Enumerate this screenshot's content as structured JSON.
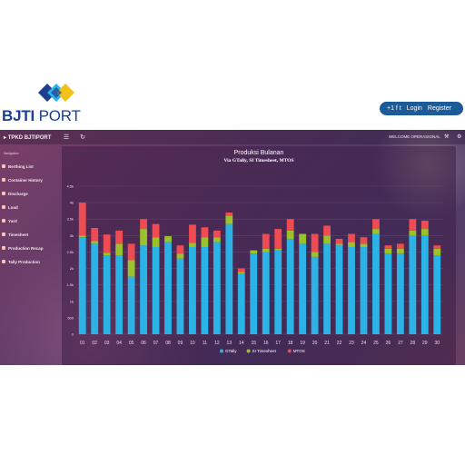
{
  "site": {
    "logo_text_bold": "BJTI",
    "logo_text_light": " PORT",
    "social": "+1 f t",
    "login_label": "Login",
    "register_label": "Register"
  },
  "header": {
    "brand": "TPKD BJTIPORT",
    "menu_icon": "menu-icon",
    "refresh_icon": "refresh-icon",
    "welcome": "WELCOME OPERASIONAL",
    "tools_icon": "tools-icon",
    "settings_icon": "gear-icon"
  },
  "sidebar": {
    "title": "Navigation",
    "items": [
      {
        "label": "Berthing List"
      },
      {
        "label": "Container History"
      },
      {
        "label": "Discharge"
      },
      {
        "label": "Load"
      },
      {
        "label": "Yard"
      },
      {
        "label": "Timesheet"
      },
      {
        "label": "Production Recap"
      },
      {
        "label": "Tally Production"
      }
    ]
  },
  "colors": {
    "gtally": "#2bb3e8",
    "si_timesheet": "#9bc22a",
    "mtos": "#ee4b52"
  },
  "chart_data": {
    "type": "bar",
    "stacked": true,
    "title": "Produksi Bulanan",
    "subtitle": "Via GTally, SI Timesheet, MTOS",
    "categories": [
      "01",
      "02",
      "03",
      "04",
      "05",
      "06",
      "07",
      "08",
      "09",
      "10",
      "11",
      "12",
      "13",
      "14",
      "15",
      "16",
      "17",
      "18",
      "19",
      "20",
      "21",
      "22",
      "23",
      "24",
      "25",
      "26",
      "27",
      "28",
      "29",
      "30"
    ],
    "yticks": [
      "0",
      "500",
      "1k",
      "1.5k",
      "2k",
      "2.5k",
      "3k",
      "3.5k",
      "4k",
      "4.5k"
    ],
    "ylim": [
      0,
      4500
    ],
    "grid": true,
    "legend_position": "bottom",
    "series": [
      {
        "name": "GTally",
        "color_key": "gtally",
        "values": [
          2950,
          2750,
          2400,
          2400,
          1750,
          2700,
          2650,
          2800,
          2300,
          2650,
          2650,
          2800,
          3350,
          1850,
          2450,
          2500,
          2550,
          2900,
          2750,
          2350,
          2750,
          2700,
          2650,
          2650,
          3050,
          2450,
          2450,
          3000,
          3000,
          2400
        ]
      },
      {
        "name": "SI Timesheet",
        "color_key": "si_timesheet",
        "values": [
          50,
          80,
          80,
          350,
          500,
          500,
          300,
          180,
          150,
          130,
          300,
          150,
          250,
          50,
          100,
          100,
          50,
          250,
          300,
          150,
          250,
          50,
          150,
          100,
          150,
          150,
          150,
          150,
          200,
          200
        ]
      },
      {
        "name": "MTOS",
        "color_key": "mtos",
        "values": [
          1000,
          400,
          550,
          400,
          500,
          300,
          400,
          0,
          250,
          550,
          300,
          200,
          100,
          100,
          0,
          450,
          600,
          350,
          0,
          550,
          300,
          150,
          250,
          200,
          300,
          100,
          150,
          350,
          250,
          100
        ]
      }
    ]
  }
}
